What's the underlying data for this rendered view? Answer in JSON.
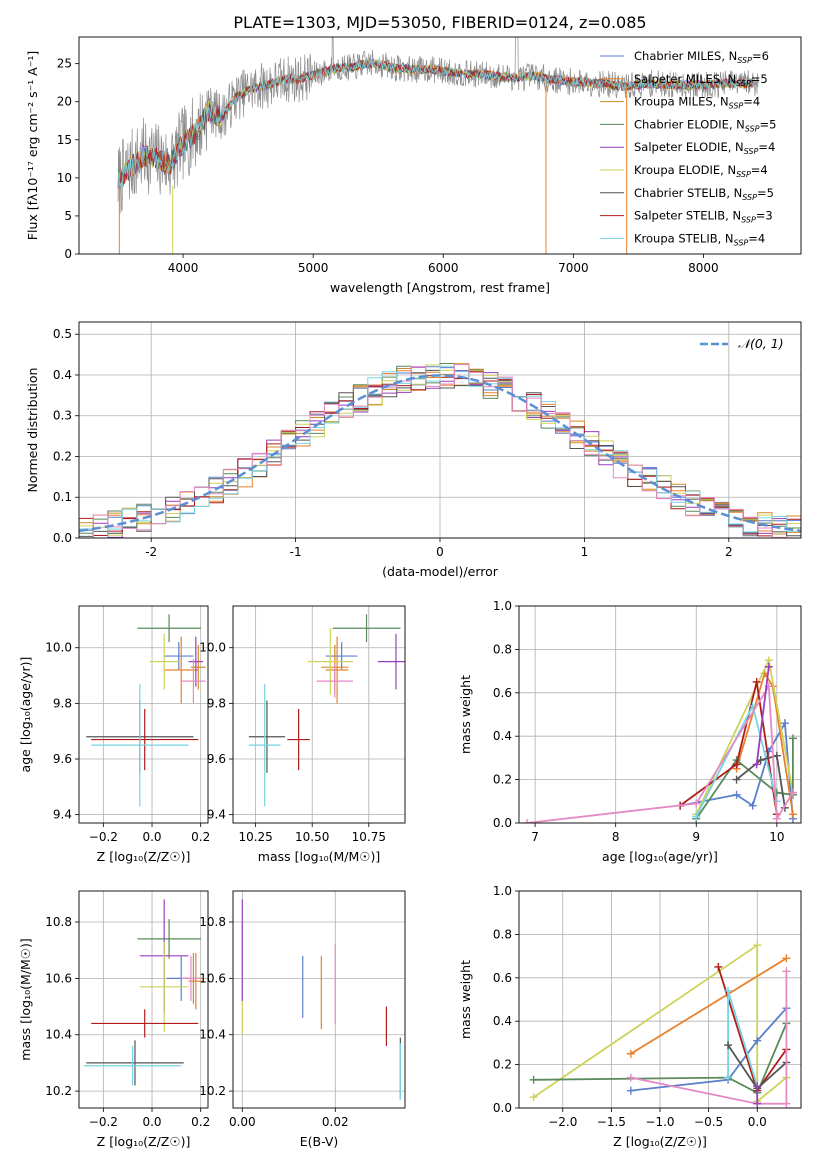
{
  "figure_title": "PLATE=1303, MJD=53050, FIBERID=0124, z=0.085",
  "colors": {
    "chabrier_miles": "#5b7fcc",
    "salpeter_miles": "#e8822f",
    "kroupa_miles": "#d18a2a",
    "chabrier_elodie": "#5a8a5a",
    "salpeter_elodie": "#9b3fbf",
    "kroupa_elodie": "#cfd25a",
    "chabrier_stelib": "#555555",
    "salpeter_stelib": "#b01c1c",
    "kroupa_stelib": "#79d3e2",
    "pink": "#e48ac4",
    "data_gray": "#8c8c8c",
    "normal_dash": "#5b8fd6"
  },
  "chart_data": [
    {
      "id": "spectrum",
      "type": "line",
      "xlabel": "wavelength [Angstrom, rest frame]",
      "ylabel": "Flux [fλ10⁻¹⁷ erg cm⁻² s⁻¹ A⁻¹]",
      "xlim": [
        3200,
        8750
      ],
      "ylim": [
        0,
        28.5
      ],
      "xticks": [
        4000,
        5000,
        6000,
        7000,
        8000
      ],
      "yticks": [
        0,
        5,
        10,
        15,
        20,
        25
      ],
      "grid": false,
      "legend_placement": "upper-right",
      "continuum_x": [
        3500,
        3600,
        3700,
        3800,
        3900,
        4000,
        4100,
        4200,
        4300,
        4400,
        4500,
        4600,
        4700,
        4800,
        4900,
        5000,
        5100,
        5200,
        5300,
        5400,
        5500,
        5600,
        5700,
        5800,
        5900,
        6000,
        6100,
        6200,
        6300,
        6400,
        6500,
        6600,
        6700,
        6800,
        6900,
        7000,
        7100,
        7200,
        7300,
        7400,
        7500,
        7600,
        7700,
        7800,
        7900,
        8000,
        8100,
        8200,
        8300,
        8400
      ],
      "continuum_y": [
        9.5,
        11.5,
        13,
        12.5,
        11.8,
        14.5,
        16,
        19,
        18,
        20.5,
        21.5,
        22,
        22.5,
        23,
        23,
        23.5,
        24,
        24.5,
        24.5,
        25,
        25,
        24.5,
        24.3,
        24.2,
        24.3,
        24,
        23.8,
        23.6,
        23.6,
        23.4,
        23.2,
        23.2,
        23.4,
        23,
        22.8,
        22.6,
        22.6,
        22.4,
        22.2,
        22,
        22.2,
        22.4,
        22.3,
        22.2,
        22.2,
        22.2,
        22.3,
        22.4,
        22.4,
        22.5
      ],
      "series": [
        {
          "name": "Chabrier MILES, N_SSP=6",
          "label_main": "Chabrier MILES, N",
          "label_sub": "SSP",
          "label_tail": "=6",
          "color_key": "chabrier_miles"
        },
        {
          "name": "Salpeter MILES, N_SSP=5",
          "label_main": "Salpeter MILES, N",
          "label_sub": "SSP",
          "label_tail": "=5",
          "color_key": "salpeter_miles"
        },
        {
          "name": "Kroupa MILES, N_SSP=4",
          "label_main": "Kroupa MILES, N",
          "label_sub": "SSP",
          "label_tail": "=4",
          "color_key": "kroupa_miles"
        },
        {
          "name": "Chabrier ELODIE, N_SSP=5",
          "label_main": "Chabrier ELODIE, N",
          "label_sub": "SSP",
          "label_tail": "=5",
          "color_key": "chabrier_elodie"
        },
        {
          "name": "Salpeter ELODIE, N_SSP=4",
          "label_main": "Salpeter ELODIE, N",
          "label_sub": "SSP",
          "label_tail": "=4",
          "color_key": "salpeter_elodie"
        },
        {
          "name": "Kroupa ELODIE, N_SSP=4",
          "label_main": "Kroupa ELODIE, N",
          "label_sub": "SSP",
          "label_tail": "=4",
          "color_key": "kroupa_elodie"
        },
        {
          "name": "Chabrier STELIB, N_SSP=5",
          "label_main": "Chabrier STELIB, N",
          "label_sub": "SSP",
          "label_tail": "=5",
          "color_key": "chabrier_stelib"
        },
        {
          "name": "Salpeter STELIB, N_SSP=3",
          "label_main": "Salpeter STELIB, N",
          "label_sub": "SSP",
          "label_tail": "=3",
          "color_key": "salpeter_stelib"
        },
        {
          "name": "Kroupa STELIB, N_SSP=4",
          "label_main": "Kroupa STELIB, N",
          "label_sub": "SSP",
          "label_tail": "=4",
          "color_key": "kroupa_stelib"
        }
      ]
    },
    {
      "id": "residuals",
      "type": "line",
      "xlabel": "(data-model)/error",
      "ylabel": "Normed distribution",
      "xlim": [
        -2.5,
        2.5
      ],
      "ylim": [
        0,
        0.53
      ],
      "xticks": [
        -2,
        -1,
        0,
        1,
        2
      ],
      "ytick_values": [
        0,
        0.1,
        0.2,
        0.3,
        0.4,
        0.5
      ],
      "ytick_labels": [
        "0.0",
        "0.1",
        "0.2",
        "0.3",
        "0.4",
        "0.5"
      ],
      "grid": true,
      "legend_placement": "upper-right",
      "normal_label": "𝒩(0, 1)",
      "bin_width": 0.1
    },
    {
      "id": "age_vs_Z",
      "type": "scatter",
      "xlabel": "Z [log₁₀(Z/Z☉)]",
      "ylabel": "age  [log₁₀(age/yr)]",
      "xlim": [
        -0.3,
        0.23
      ],
      "ylim": [
        9.37,
        10.15
      ],
      "xtick_values": [
        -0.2,
        0,
        0.2
      ],
      "xtick_labels": [
        "−0.2",
        "0.0",
        "0.2"
      ],
      "ytick_values": [
        9.4,
        9.6,
        9.8,
        10.0
      ],
      "ytick_labels": [
        "9.4",
        "9.6",
        "9.8",
        "10.0"
      ],
      "grid": true,
      "points": [
        {
          "x": 0.11,
          "xerr": 0.06,
          "y": 9.97,
          "yerr": 0.05,
          "c": "chabrier_miles"
        },
        {
          "x": 0.12,
          "xerr": 0.07,
          "y": 9.92,
          "yerr": 0.12,
          "c": "salpeter_miles"
        },
        {
          "x": 0.19,
          "xerr": 0.03,
          "y": 9.93,
          "yerr": 0.08,
          "c": "kroupa_miles"
        },
        {
          "x": 0.07,
          "xerr": 0.13,
          "y": 10.07,
          "yerr": 0.05,
          "c": "chabrier_elodie"
        },
        {
          "x": 0.18,
          "xerr": 0.03,
          "y": 9.95,
          "yerr": 0.09,
          "c": "salpeter_elodie"
        },
        {
          "x": 0.05,
          "xerr": 0.06,
          "y": 9.95,
          "yerr": 0.1,
          "c": "kroupa_elodie"
        },
        {
          "x": -0.05,
          "xerr": 0.22,
          "y": 9.68,
          "yerr": 0.13,
          "c": "chabrier_stelib"
        },
        {
          "x": -0.03,
          "xerr": 0.22,
          "y": 9.67,
          "yerr": 0.11,
          "c": "salpeter_stelib"
        },
        {
          "x": -0.05,
          "xerr": 0.2,
          "y": 9.65,
          "yerr": 0.22,
          "c": "kroupa_stelib"
        },
        {
          "x": 0.17,
          "xerr": 0.05,
          "y": 9.88,
          "yerr": 0.08,
          "c": "pink"
        }
      ]
    },
    {
      "id": "age_vs_mass",
      "type": "scatter",
      "xlabel": "mass [log₁₀(M/M☉)]",
      "ylabel": "",
      "xlim": [
        10.15,
        10.91
      ],
      "ylim": [
        9.37,
        10.15
      ],
      "xtick_values": [
        10.25,
        10.5,
        10.75
      ],
      "xtick_labels": [
        "10.25",
        "10.50",
        "10.75"
      ],
      "ytick_values": [
        9.4,
        9.6,
        9.8,
        10.0
      ],
      "ytick_labels": [
        "9.4",
        "9.6",
        "9.8",
        "10.0"
      ],
      "grid": true,
      "points": [
        {
          "x": 10.63,
          "xerr": 0.07,
          "y": 9.97,
          "yerr": 0.05,
          "c": "chabrier_miles"
        },
        {
          "x": 10.61,
          "xerr": 0.05,
          "y": 9.92,
          "yerr": 0.12,
          "c": "salpeter_miles"
        },
        {
          "x": 10.6,
          "xerr": 0.06,
          "y": 9.93,
          "yerr": 0.08,
          "c": "kroupa_miles"
        },
        {
          "x": 10.74,
          "xerr": 0.15,
          "y": 10.07,
          "yerr": 0.05,
          "c": "chabrier_elodie"
        },
        {
          "x": 10.87,
          "xerr": 0.08,
          "y": 9.95,
          "yerr": 0.1,
          "c": "salpeter_elodie"
        },
        {
          "x": 10.58,
          "xerr": 0.1,
          "y": 9.95,
          "yerr": 0.12,
          "c": "kroupa_elodie"
        },
        {
          "x": 10.3,
          "xerr": 0.08,
          "y": 9.68,
          "yerr": 0.13,
          "c": "chabrier_stelib"
        },
        {
          "x": 10.44,
          "xerr": 0.05,
          "y": 9.67,
          "yerr": 0.11,
          "c": "salpeter_stelib"
        },
        {
          "x": 10.29,
          "xerr": 0.07,
          "y": 9.65,
          "yerr": 0.22,
          "c": "kroupa_stelib"
        },
        {
          "x": 10.6,
          "xerr": 0.08,
          "y": 9.88,
          "yerr": 0.06,
          "c": "pink"
        }
      ]
    },
    {
      "id": "weight_vs_age",
      "type": "line",
      "xlabel": "age  [log₁₀(age/yr)]",
      "ylabel": "mass weight",
      "xlim": [
        6.8,
        10.3
      ],
      "ylim": [
        0,
        1.0
      ],
      "xticks": [
        7,
        8,
        9,
        10
      ],
      "ytick_values": [
        0,
        0.2,
        0.4,
        0.6,
        0.8,
        1.0
      ],
      "ytick_labels": [
        "0.0",
        "0.2",
        "0.4",
        "0.6",
        "0.8",
        "1.0"
      ],
      "grid": true,
      "series": [
        {
          "c": "chabrier_miles",
          "x": [
            8.8,
            9.5,
            9.7,
            9.9,
            10.1,
            10.2
          ],
          "y": [
            0.08,
            0.13,
            0.08,
            0.33,
            0.46,
            0.02
          ]
        },
        {
          "c": "salpeter_miles",
          "x": [
            9.5,
            9.85,
            9.95,
            10.2
          ],
          "y": [
            0.25,
            0.69,
            0.63,
            0.04
          ]
        },
        {
          "c": "kroupa_elodie",
          "x": [
            9.0,
            9.9,
            10.2
          ],
          "y": [
            0.04,
            0.75,
            0.14
          ]
        },
        {
          "c": "chabrier_elodie",
          "x": [
            9.0,
            9.5,
            10.0,
            10.2,
            10.2
          ],
          "y": [
            0.02,
            0.29,
            0.14,
            0.13,
            0.39
          ]
        },
        {
          "c": "salpeter_stelib",
          "x": [
            8.8,
            9.5,
            9.75,
            10.0
          ],
          "y": [
            0.08,
            0.27,
            0.65,
            0.04
          ]
        },
        {
          "c": "kroupa_stelib",
          "x": [
            9.0,
            9.7,
            10.0
          ],
          "y": [
            0.03,
            0.54,
            0.1
          ]
        },
        {
          "c": "chabrier_stelib",
          "x": [
            9.5,
            9.8,
            10.0,
            10.1
          ],
          "y": [
            0.2,
            0.29,
            0.31,
            0.07
          ]
        },
        {
          "c": "pink",
          "x": [
            6.9,
            9.0,
            9.9,
            10.0,
            10.2
          ],
          "y": [
            0.0,
            0.09,
            0.63,
            0.02,
            0.14
          ]
        },
        {
          "c": "salpeter_elodie",
          "x": [
            9.75,
            9.9
          ],
          "y": [
            0.27,
            0.72
          ]
        }
      ]
    },
    {
      "id": "mass_vs_Z",
      "type": "scatter",
      "xlabel": "Z [log₁₀(Z/Z☉)]",
      "ylabel": "mass [log₁₀(M/M☉)]",
      "xlim": [
        -0.3,
        0.23
      ],
      "ylim": [
        10.14,
        10.91
      ],
      "xtick_values": [
        -0.2,
        0,
        0.2
      ],
      "xtick_labels": [
        "−0.2",
        "0.0",
        "0.2"
      ],
      "ytick_values": [
        10.2,
        10.4,
        10.6,
        10.8
      ],
      "ytick_labels": [
        "10.2",
        "10.4",
        "10.6",
        "10.8"
      ],
      "grid": true,
      "points": [
        {
          "x": 0.12,
          "xerr": 0.06,
          "y": 10.6,
          "yerr": 0.08,
          "c": "chabrier_miles"
        },
        {
          "x": 0.18,
          "xerr": 0.03,
          "y": 10.59,
          "yerr": 0.1,
          "c": "salpeter_miles"
        },
        {
          "x": 0.17,
          "xerr": 0.04,
          "y": 10.6,
          "yerr": 0.09,
          "c": "kroupa_miles"
        },
        {
          "x": 0.07,
          "xerr": 0.13,
          "y": 10.74,
          "yerr": 0.07,
          "c": "chabrier_elodie"
        },
        {
          "x": 0.05,
          "xerr": 0.1,
          "y": 10.68,
          "yerr": 0.2,
          "c": "salpeter_elodie"
        },
        {
          "x": 0.05,
          "xerr": 0.1,
          "y": 10.57,
          "yerr": 0.16,
          "c": "kroupa_elodie"
        },
        {
          "x": -0.07,
          "xerr": 0.2,
          "y": 10.3,
          "yerr": 0.08,
          "c": "chabrier_stelib"
        },
        {
          "x": -0.03,
          "xerr": 0.22,
          "y": 10.44,
          "yerr": 0.05,
          "c": "salpeter_stelib"
        },
        {
          "x": -0.08,
          "xerr": 0.2,
          "y": 10.29,
          "yerr": 0.07,
          "c": "kroupa_stelib"
        },
        {
          "x": 0.16,
          "xerr": 0.04,
          "y": 10.6,
          "yerr": 0.08,
          "c": "pink"
        }
      ]
    },
    {
      "id": "mass_vs_EBV",
      "type": "scatter",
      "xlabel": "E(B-V)",
      "ylabel": "",
      "xlim": [
        -0.002,
        0.035
      ],
      "ylim": [
        10.14,
        10.91
      ],
      "xtick_values": [
        0.0,
        0.02
      ],
      "xtick_labels": [
        "0.00",
        "0.02"
      ],
      "ytick_values": [
        10.2,
        10.4,
        10.6,
        10.8
      ],
      "ytick_labels": [
        "10.2",
        "10.4",
        "10.6",
        "10.8"
      ],
      "grid": true,
      "points": [
        {
          "x": 0.013,
          "xerr": 0,
          "y": 10.57,
          "yerr": 0.11,
          "c": "chabrier_miles"
        },
        {
          "x": 0.017,
          "xerr": 0,
          "y": 10.55,
          "yerr": 0.13,
          "c": "salpeter_miles"
        },
        {
          "x": 0.0,
          "xerr": 0,
          "y": 10.6,
          "yerr": 0.2,
          "c": "kroupa_elodie"
        },
        {
          "x": 0.0,
          "xerr": 0,
          "y": 10.7,
          "yerr": 0.18,
          "c": "salpeter_elodie"
        },
        {
          "x": 0.02,
          "xerr": 0,
          "y": 10.58,
          "yerr": 0.14,
          "c": "pink"
        },
        {
          "x": 0.031,
          "xerr": 0,
          "y": 10.43,
          "yerr": 0.07,
          "c": "salpeter_stelib"
        },
        {
          "x": 0.034,
          "xerr": 0,
          "y": 10.28,
          "yerr": 0.11,
          "c": "chabrier_stelib"
        },
        {
          "x": 0.034,
          "xerr": 0,
          "y": 10.27,
          "yerr": 0.1,
          "c": "kroupa_stelib"
        }
      ]
    },
    {
      "id": "weight_vs_Z",
      "type": "line",
      "xlabel": "Z [log₁₀(Z/Z☉)]",
      "ylabel": "mass weight",
      "xlim": [
        -2.45,
        0.45
      ],
      "ylim": [
        0,
        1.0
      ],
      "xtick_values": [
        -2.0,
        -1.5,
        -1.0,
        -0.5,
        0.0
      ],
      "xtick_labels": [
        "−2.0",
        "−1.5",
        "−1.0",
        "−0.5",
        "0.0"
      ],
      "ytick_values": [
        0,
        0.2,
        0.4,
        0.6,
        0.8,
        1.0
      ],
      "ytick_labels": [
        "0.0",
        "0.2",
        "0.4",
        "0.6",
        "0.8",
        "1.0"
      ],
      "grid": true,
      "series": [
        {
          "c": "kroupa_elodie",
          "x": [
            -2.3,
            0.0,
            0.0,
            0.3
          ],
          "y": [
            0.05,
            0.75,
            0.03,
            0.14
          ]
        },
        {
          "c": "salpeter_miles",
          "x": [
            -1.3,
            0.3
          ],
          "y": [
            0.25,
            0.69
          ]
        },
        {
          "c": "chabrier_miles",
          "x": [
            -1.3,
            -0.3,
            0.0,
            0.3
          ],
          "y": [
            0.08,
            0.13,
            0.31,
            0.46
          ]
        },
        {
          "c": "chabrier_elodie",
          "x": [
            -2.3,
            -0.3,
            0.0,
            0.3
          ],
          "y": [
            0.13,
            0.14,
            0.07,
            0.39
          ]
        },
        {
          "c": "salpeter_stelib",
          "x": [
            -0.4,
            0.0,
            0.3
          ],
          "y": [
            0.65,
            0.08,
            0.27
          ]
        },
        {
          "c": "kroupa_stelib",
          "x": [
            -0.3,
            -0.3,
            0.0
          ],
          "y": [
            0.14,
            0.54,
            0.1
          ]
        },
        {
          "c": "chabrier_stelib",
          "x": [
            -0.3,
            0.0,
            0.3
          ],
          "y": [
            0.29,
            0.09,
            0.21
          ]
        },
        {
          "c": "pink",
          "x": [
            -1.3,
            0.0,
            0.3,
            0.3
          ],
          "y": [
            0.14,
            0.02,
            0.02,
            0.63
          ]
        },
        {
          "c": "salpeter_elodie",
          "x": [
            0.0,
            0.0
          ],
          "y": [
            0.02,
            0.1
          ]
        }
      ]
    }
  ]
}
